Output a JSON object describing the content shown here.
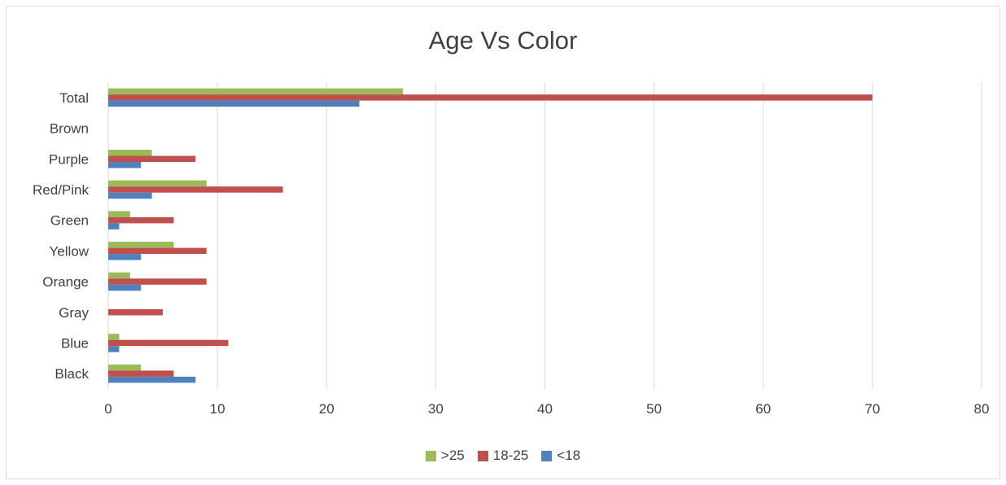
{
  "chart_data": {
    "type": "bar",
    "orientation": "horizontal",
    "title": "Age Vs Color",
    "categories": [
      "Total",
      "Brown",
      "Purple",
      "Red/Pink",
      "Green",
      "Yellow",
      "Orange",
      "Gray",
      "Blue",
      "Black"
    ],
    "series": [
      {
        "name": ">25",
        "color": "#9bbb59",
        "values": [
          27,
          0,
          4,
          9,
          2,
          6,
          2,
          0,
          1,
          3
        ]
      },
      {
        "name": "18-25",
        "color": "#c0504d",
        "values": [
          70,
          0,
          8,
          16,
          6,
          9,
          9,
          5,
          11,
          6
        ]
      },
      {
        "name": "<18",
        "color": "#4f81bd",
        "values": [
          23,
          0,
          3,
          4,
          1,
          3,
          3,
          0,
          1,
          8
        ]
      }
    ],
    "xlim": [
      0,
      80
    ],
    "xticks": [
      0,
      10,
      20,
      30,
      40,
      50,
      60,
      70,
      80
    ],
    "grid": true,
    "legend_position": "bottom"
  }
}
